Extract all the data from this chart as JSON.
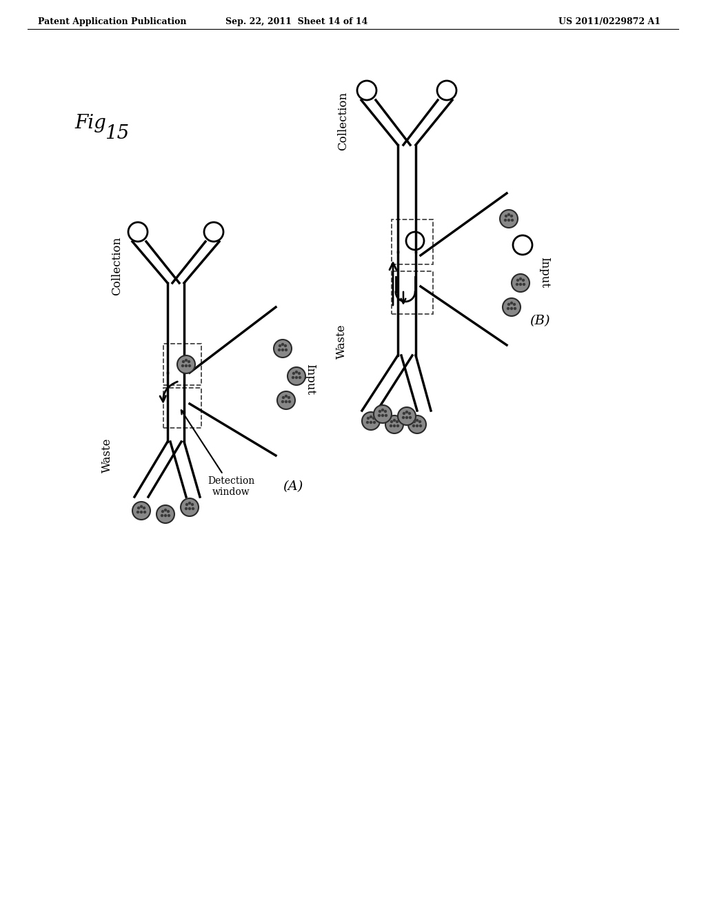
{
  "title_left": "Patent Application Publication",
  "title_center": "Sep. 22, 2011  Sheet 14 of 14",
  "title_right": "US 2011/0229872 A1",
  "background_color": "#ffffff",
  "line_color": "#000000",
  "text_color": "#000000",
  "lw": 2.5
}
